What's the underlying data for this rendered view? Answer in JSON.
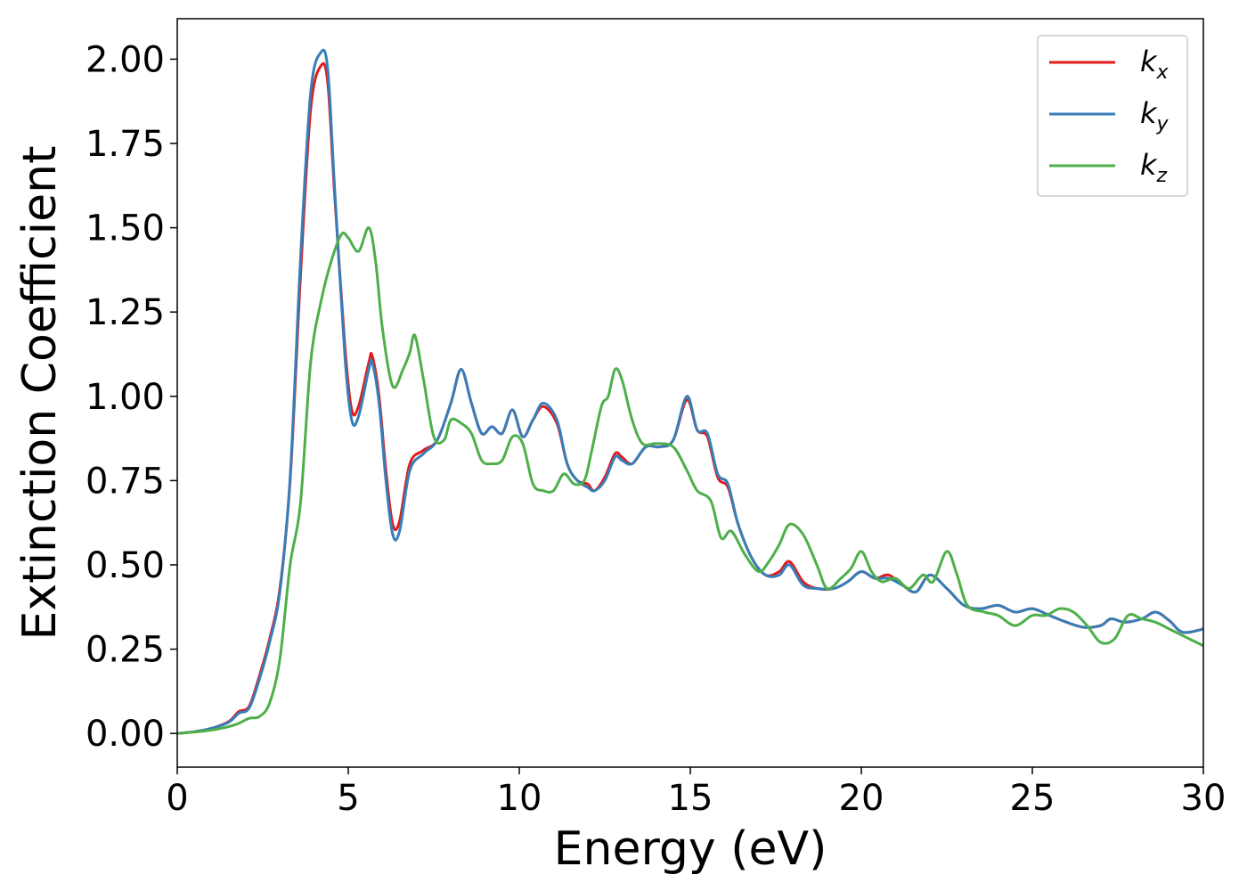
{
  "chart_data": {
    "type": "line",
    "xlabel": "Energy (eV)",
    "ylabel": "Extinction Coefficient",
    "xlim": [
      0,
      30
    ],
    "ylim": [
      -0.1,
      2.12
    ],
    "xticks": [
      0,
      5,
      10,
      15,
      20,
      25,
      30
    ],
    "xtick_labels": [
      "0",
      "5",
      "10",
      "15",
      "20",
      "25",
      "30"
    ],
    "yticks": [
      0.0,
      0.25,
      0.5,
      0.75,
      1.0,
      1.25,
      1.5,
      1.75,
      2.0
    ],
    "ytick_labels": [
      "0.00",
      "0.25",
      "0.50",
      "0.75",
      "1.00",
      "1.25",
      "1.50",
      "1.75",
      "2.00"
    ],
    "grid": false,
    "legend_position": "top-right",
    "series": [
      {
        "name_base": "k",
        "name_sub": "x",
        "color": "#e41a1c",
        "points": [
          [
            0,
            0.0
          ],
          [
            0.5,
            0.005
          ],
          [
            1.0,
            0.015
          ],
          [
            1.5,
            0.035
          ],
          [
            1.8,
            0.065
          ],
          [
            2.1,
            0.08
          ],
          [
            2.4,
            0.17
          ],
          [
            2.7,
            0.28
          ],
          [
            3.0,
            0.43
          ],
          [
            3.3,
            0.75
          ],
          [
            3.6,
            1.35
          ],
          [
            3.9,
            1.85
          ],
          [
            4.2,
            1.98
          ],
          [
            4.4,
            1.93
          ],
          [
            4.6,
            1.6
          ],
          [
            4.9,
            1.15
          ],
          [
            5.1,
            0.96
          ],
          [
            5.3,
            0.97
          ],
          [
            5.6,
            1.1
          ],
          [
            5.7,
            1.12
          ],
          [
            5.9,
            1.0
          ],
          [
            6.1,
            0.78
          ],
          [
            6.3,
            0.62
          ],
          [
            6.5,
            0.63
          ],
          [
            6.8,
            0.8
          ],
          [
            7.2,
            0.84
          ],
          [
            7.6,
            0.87
          ],
          [
            8.0,
            0.98
          ],
          [
            8.3,
            1.08
          ],
          [
            8.6,
            0.98
          ],
          [
            8.9,
            0.89
          ],
          [
            9.2,
            0.91
          ],
          [
            9.5,
            0.89
          ],
          [
            9.8,
            0.96
          ],
          [
            10.1,
            0.88
          ],
          [
            10.4,
            0.93
          ],
          [
            10.7,
            0.97
          ],
          [
            11.1,
            0.92
          ],
          [
            11.4,
            0.8
          ],
          [
            11.7,
            0.75
          ],
          [
            12.0,
            0.74
          ],
          [
            12.2,
            0.72
          ],
          [
            12.5,
            0.76
          ],
          [
            12.8,
            0.83
          ],
          [
            13.0,
            0.82
          ],
          [
            13.3,
            0.8
          ],
          [
            13.7,
            0.85
          ],
          [
            14.1,
            0.85
          ],
          [
            14.5,
            0.87
          ],
          [
            14.9,
            0.99
          ],
          [
            15.2,
            0.9
          ],
          [
            15.5,
            0.88
          ],
          [
            15.8,
            0.76
          ],
          [
            16.1,
            0.73
          ],
          [
            16.4,
            0.62
          ],
          [
            16.8,
            0.52
          ],
          [
            17.2,
            0.47
          ],
          [
            17.6,
            0.48
          ],
          [
            17.9,
            0.51
          ],
          [
            18.3,
            0.45
          ],
          [
            18.7,
            0.43
          ],
          [
            19.2,
            0.43
          ],
          [
            19.6,
            0.45
          ],
          [
            20.0,
            0.48
          ],
          [
            20.4,
            0.46
          ],
          [
            20.8,
            0.47
          ],
          [
            21.2,
            0.44
          ],
          [
            21.6,
            0.42
          ],
          [
            22.0,
            0.47
          ],
          [
            22.5,
            0.43
          ],
          [
            23.0,
            0.38
          ],
          [
            23.5,
            0.37
          ],
          [
            24.0,
            0.38
          ],
          [
            24.5,
            0.36
          ],
          [
            25.0,
            0.37
          ],
          [
            25.5,
            0.35
          ],
          [
            26.0,
            0.33
          ],
          [
            26.5,
            0.315
          ],
          [
            27.0,
            0.32
          ],
          [
            27.3,
            0.34
          ],
          [
            27.7,
            0.33
          ],
          [
            28.2,
            0.34
          ],
          [
            28.6,
            0.36
          ],
          [
            29.0,
            0.335
          ],
          [
            29.4,
            0.3
          ],
          [
            30,
            0.31
          ]
        ]
      },
      {
        "name_base": "k",
        "name_sub": "y",
        "color": "#377eb8",
        "points": [
          [
            0,
            0.0
          ],
          [
            0.5,
            0.005
          ],
          [
            1.0,
            0.015
          ],
          [
            1.5,
            0.033
          ],
          [
            1.8,
            0.06
          ],
          [
            2.1,
            0.075
          ],
          [
            2.4,
            0.16
          ],
          [
            2.7,
            0.27
          ],
          [
            3.0,
            0.42
          ],
          [
            3.3,
            0.76
          ],
          [
            3.6,
            1.4
          ],
          [
            3.9,
            1.9
          ],
          [
            4.2,
            2.02
          ],
          [
            4.4,
            1.97
          ],
          [
            4.6,
            1.62
          ],
          [
            4.9,
            1.12
          ],
          [
            5.1,
            0.93
          ],
          [
            5.3,
            0.94
          ],
          [
            5.6,
            1.08
          ],
          [
            5.7,
            1.1
          ],
          [
            5.9,
            0.98
          ],
          [
            6.1,
            0.75
          ],
          [
            6.3,
            0.59
          ],
          [
            6.5,
            0.6
          ],
          [
            6.8,
            0.78
          ],
          [
            7.2,
            0.83
          ],
          [
            7.6,
            0.87
          ],
          [
            8.0,
            0.98
          ],
          [
            8.3,
            1.08
          ],
          [
            8.6,
            0.98
          ],
          [
            8.9,
            0.89
          ],
          [
            9.2,
            0.91
          ],
          [
            9.5,
            0.89
          ],
          [
            9.8,
            0.96
          ],
          [
            10.1,
            0.88
          ],
          [
            10.4,
            0.93
          ],
          [
            10.7,
            0.98
          ],
          [
            11.1,
            0.93
          ],
          [
            11.4,
            0.8
          ],
          [
            11.7,
            0.75
          ],
          [
            12.0,
            0.73
          ],
          [
            12.2,
            0.72
          ],
          [
            12.5,
            0.75
          ],
          [
            12.8,
            0.82
          ],
          [
            13.0,
            0.81
          ],
          [
            13.3,
            0.8
          ],
          [
            13.7,
            0.85
          ],
          [
            14.1,
            0.85
          ],
          [
            14.5,
            0.87
          ],
          [
            14.9,
            1.0
          ],
          [
            15.2,
            0.9
          ],
          [
            15.5,
            0.89
          ],
          [
            15.8,
            0.77
          ],
          [
            16.1,
            0.74
          ],
          [
            16.4,
            0.62
          ],
          [
            16.8,
            0.52
          ],
          [
            17.2,
            0.47
          ],
          [
            17.6,
            0.47
          ],
          [
            17.9,
            0.5
          ],
          [
            18.3,
            0.44
          ],
          [
            18.7,
            0.43
          ],
          [
            19.2,
            0.43
          ],
          [
            19.6,
            0.45
          ],
          [
            20.0,
            0.48
          ],
          [
            20.4,
            0.46
          ],
          [
            20.8,
            0.46
          ],
          [
            21.2,
            0.44
          ],
          [
            21.6,
            0.42
          ],
          [
            22.0,
            0.47
          ],
          [
            22.5,
            0.43
          ],
          [
            23.0,
            0.38
          ],
          [
            23.5,
            0.37
          ],
          [
            24.0,
            0.38
          ],
          [
            24.5,
            0.36
          ],
          [
            25.0,
            0.37
          ],
          [
            25.5,
            0.35
          ],
          [
            26.0,
            0.33
          ],
          [
            26.5,
            0.315
          ],
          [
            27.0,
            0.32
          ],
          [
            27.3,
            0.34
          ],
          [
            27.7,
            0.33
          ],
          [
            28.2,
            0.34
          ],
          [
            28.6,
            0.36
          ],
          [
            29.0,
            0.335
          ],
          [
            29.4,
            0.3
          ],
          [
            30,
            0.31
          ]
        ]
      },
      {
        "name_base": "k",
        "name_sub": "z",
        "color": "#4daf4a",
        "points": [
          [
            0,
            0.0
          ],
          [
            0.5,
            0.004
          ],
          [
            1.0,
            0.01
          ],
          [
            1.5,
            0.02
          ],
          [
            1.8,
            0.03
          ],
          [
            2.1,
            0.045
          ],
          [
            2.4,
            0.05
          ],
          [
            2.7,
            0.09
          ],
          [
            3.0,
            0.22
          ],
          [
            3.3,
            0.5
          ],
          [
            3.6,
            0.68
          ],
          [
            3.9,
            1.1
          ],
          [
            4.2,
            1.28
          ],
          [
            4.5,
            1.4
          ],
          [
            4.8,
            1.48
          ],
          [
            5.0,
            1.47
          ],
          [
            5.3,
            1.43
          ],
          [
            5.6,
            1.5
          ],
          [
            5.8,
            1.4
          ],
          [
            6.0,
            1.2
          ],
          [
            6.3,
            1.03
          ],
          [
            6.6,
            1.08
          ],
          [
            6.8,
            1.13
          ],
          [
            6.95,
            1.18
          ],
          [
            7.2,
            1.05
          ],
          [
            7.5,
            0.88
          ],
          [
            7.8,
            0.87
          ],
          [
            8.0,
            0.93
          ],
          [
            8.3,
            0.92
          ],
          [
            8.6,
            0.89
          ],
          [
            8.9,
            0.81
          ],
          [
            9.2,
            0.8
          ],
          [
            9.5,
            0.81
          ],
          [
            9.8,
            0.88
          ],
          [
            10.1,
            0.86
          ],
          [
            10.4,
            0.74
          ],
          [
            10.7,
            0.72
          ],
          [
            11.0,
            0.72
          ],
          [
            11.3,
            0.77
          ],
          [
            11.6,
            0.74
          ],
          [
            11.9,
            0.75
          ],
          [
            12.1,
            0.83
          ],
          [
            12.4,
            0.97
          ],
          [
            12.6,
            1.0
          ],
          [
            12.8,
            1.08
          ],
          [
            13.0,
            1.05
          ],
          [
            13.3,
            0.93
          ],
          [
            13.6,
            0.86
          ],
          [
            14.0,
            0.86
          ],
          [
            14.5,
            0.85
          ],
          [
            14.9,
            0.78
          ],
          [
            15.2,
            0.72
          ],
          [
            15.6,
            0.69
          ],
          [
            15.9,
            0.58
          ],
          [
            16.2,
            0.6
          ],
          [
            16.6,
            0.53
          ],
          [
            17.0,
            0.48
          ],
          [
            17.3,
            0.51
          ],
          [
            17.6,
            0.56
          ],
          [
            17.9,
            0.62
          ],
          [
            18.3,
            0.59
          ],
          [
            18.7,
            0.5
          ],
          [
            19.0,
            0.43
          ],
          [
            19.4,
            0.46
          ],
          [
            19.7,
            0.49
          ],
          [
            20.0,
            0.54
          ],
          [
            20.3,
            0.48
          ],
          [
            20.6,
            0.45
          ],
          [
            21.0,
            0.46
          ],
          [
            21.4,
            0.43
          ],
          [
            21.8,
            0.47
          ],
          [
            22.1,
            0.45
          ],
          [
            22.5,
            0.54
          ],
          [
            22.8,
            0.47
          ],
          [
            23.1,
            0.38
          ],
          [
            23.6,
            0.36
          ],
          [
            24.0,
            0.35
          ],
          [
            24.5,
            0.32
          ],
          [
            25.0,
            0.35
          ],
          [
            25.4,
            0.35
          ],
          [
            25.8,
            0.37
          ],
          [
            26.2,
            0.36
          ],
          [
            26.6,
            0.32
          ],
          [
            27.0,
            0.27
          ],
          [
            27.4,
            0.28
          ],
          [
            27.8,
            0.35
          ],
          [
            28.2,
            0.34
          ],
          [
            28.6,
            0.33
          ],
          [
            29.0,
            0.31
          ],
          [
            29.4,
            0.29
          ],
          [
            30,
            0.26
          ]
        ]
      }
    ]
  }
}
